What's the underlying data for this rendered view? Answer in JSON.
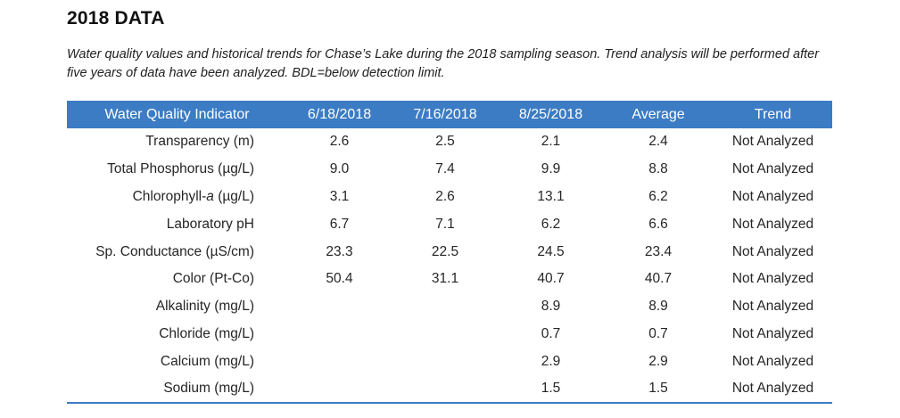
{
  "title": "2018 DATA",
  "caption": "Water quality values and historical trends for Chase’s Lake during the 2018 sampling season. Trend analysis will be performed after five years of data have been analyzed. BDL=below detection limit.",
  "table": {
    "headers": [
      "Water Quality Indicator",
      "6/18/2018",
      "7/16/2018",
      "8/25/2018",
      "Average",
      "Trend"
    ],
    "rows": [
      {
        "indicator_pre": "Transparency (m)",
        "indicator_italic": "",
        "indicator_post": "",
        "d1": "2.6",
        "d2": "2.5",
        "d3": "2.1",
        "avg": "2.4",
        "trend": "Not Analyzed"
      },
      {
        "indicator_pre": "Total Phosphorus (µg/L)",
        "indicator_italic": "",
        "indicator_post": "",
        "d1": "9.0",
        "d2": "7.4",
        "d3": "9.9",
        "avg": "8.8",
        "trend": "Not Analyzed"
      },
      {
        "indicator_pre": "Chlorophyll-",
        "indicator_italic": "a",
        "indicator_post": " (µg/L)",
        "d1": "3.1",
        "d2": "2.6",
        "d3": "13.1",
        "avg": "6.2",
        "trend": "Not Analyzed"
      },
      {
        "indicator_pre": "Laboratory pH",
        "indicator_italic": "",
        "indicator_post": "",
        "d1": "6.7",
        "d2": "7.1",
        "d3": "6.2",
        "avg": "6.6",
        "trend": "Not Analyzed"
      },
      {
        "indicator_pre": "Sp. Conductance (µS/cm)",
        "indicator_italic": "",
        "indicator_post": "",
        "d1": "23.3",
        "d2": "22.5",
        "d3": "24.5",
        "avg": "23.4",
        "trend": "Not Analyzed"
      },
      {
        "indicator_pre": "Color (Pt-Co)",
        "indicator_italic": "",
        "indicator_post": "",
        "d1": "50.4",
        "d2": "31.1",
        "d3": "40.7",
        "avg": "40.7",
        "trend": "Not Analyzed"
      },
      {
        "indicator_pre": "Alkalinity (mg/L)",
        "indicator_italic": "",
        "indicator_post": "",
        "d1": "",
        "d2": "",
        "d3": "8.9",
        "avg": "8.9",
        "trend": "Not Analyzed"
      },
      {
        "indicator_pre": "Chloride (mg/L)",
        "indicator_italic": "",
        "indicator_post": "",
        "d1": "",
        "d2": "",
        "d3": "0.7",
        "avg": "0.7",
        "trend": "Not Analyzed"
      },
      {
        "indicator_pre": "Calcium (mg/L)",
        "indicator_italic": "",
        "indicator_post": "",
        "d1": "",
        "d2": "",
        "d3": "2.9",
        "avg": "2.9",
        "trend": "Not Analyzed"
      },
      {
        "indicator_pre": "Sodium (mg/L)",
        "indicator_italic": "",
        "indicator_post": "",
        "d1": "",
        "d2": "",
        "d3": "1.5",
        "avg": "1.5",
        "trend": "Not Analyzed"
      }
    ]
  },
  "colors": {
    "header_bg": "#3b7cc4",
    "header_text": "#ffffff"
  }
}
